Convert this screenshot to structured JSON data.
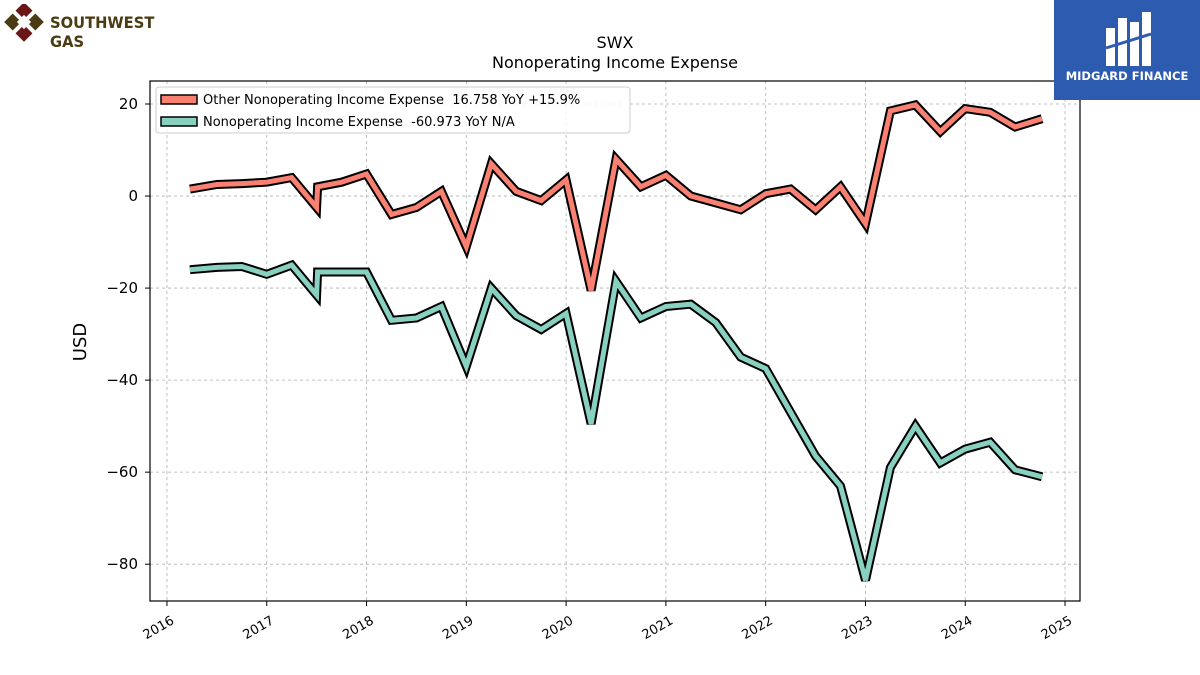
{
  "logos": {
    "left": {
      "text": "SOUTHWEST GAS",
      "colors": [
        "#6b1616",
        "#4a3b12"
      ]
    },
    "right": {
      "text": "MIDGARD FINANCE",
      "background": "#2d5bb0"
    }
  },
  "chart_data": {
    "type": "line",
    "title": "SWX",
    "subtitle": "Nonoperating Income Expense",
    "xlabel": "",
    "ylabel": "USD",
    "x_ticks": [
      "2016",
      "2017",
      "2018",
      "2019",
      "2020",
      "2021",
      "2022",
      "2023",
      "2024",
      "2025"
    ],
    "y_ticks": [
      "20",
      "0",
      "−20",
      "−40",
      "−60",
      "−80"
    ],
    "xlim": [
      2015.83,
      2025.15
    ],
    "ylim": [
      -88,
      25
    ],
    "grid": true,
    "legend_position": "top-left",
    "series": [
      {
        "name": "Other Nonoperating Income Expense  16.758 YoY +15.9%",
        "color": "#fa8072",
        "x": [
          2016.23,
          2016.5,
          2016.75,
          2017.0,
          2017.25,
          2017.5,
          2017.51,
          2017.75,
          2018.0,
          2018.25,
          2018.5,
          2018.75,
          2019.0,
          2019.25,
          2019.5,
          2019.75,
          2020.0,
          2020.25,
          2020.5,
          2020.75,
          2021.0,
          2021.25,
          2021.5,
          2021.75,
          2022.0,
          2022.25,
          2022.5,
          2022.75,
          2023.0,
          2023.25,
          2023.5,
          2023.75,
          2024.0,
          2024.25,
          2024.5,
          2024.77
        ],
        "values": [
          1.5,
          2.5,
          2.7,
          3.0,
          4.0,
          -2.5,
          2.0,
          3.0,
          4.8,
          -4.0,
          -2.5,
          1.0,
          -11.0,
          7.0,
          1.0,
          -1.0,
          3.5,
          -20.5,
          8.0,
          2.0,
          4.5,
          0.0,
          -1.5,
          -3.0,
          0.5,
          1.5,
          -3.0,
          2.0,
          -6.0,
          18.5,
          19.8,
          14.0,
          19.0,
          18.2,
          15.0,
          16.8
        ]
      },
      {
        "name": "Nonoperating Income Expense  -60.973 YoY N/A",
        "color": "#88d0c0",
        "x": [
          2016.23,
          2016.5,
          2016.75,
          2017.0,
          2017.25,
          2017.5,
          2017.51,
          2017.75,
          2018.0,
          2018.25,
          2018.5,
          2018.75,
          2019.0,
          2019.25,
          2019.5,
          2019.75,
          2020.0,
          2020.25,
          2020.5,
          2020.75,
          2021.0,
          2021.25,
          2021.5,
          2021.75,
          2022.0,
          2022.25,
          2022.5,
          2022.75,
          2023.0,
          2023.25,
          2023.5,
          2023.75,
          2024.0,
          2024.25,
          2024.5,
          2024.77
        ],
        "values": [
          -16.0,
          -15.5,
          -15.3,
          -17.0,
          -15.0,
          -21.5,
          -16.5,
          -16.5,
          -16.5,
          -27.0,
          -26.5,
          -24.0,
          -37.0,
          -20.0,
          -26.0,
          -29.0,
          -25.5,
          -49.5,
          -18.5,
          -26.5,
          -24.0,
          -23.5,
          -27.5,
          -35.0,
          -37.5,
          -47.0,
          -56.5,
          -63.0,
          -83.5,
          -59.0,
          -50.0,
          -58.0,
          -55.0,
          -53.5,
          -59.5,
          -61.0
        ]
      }
    ]
  }
}
